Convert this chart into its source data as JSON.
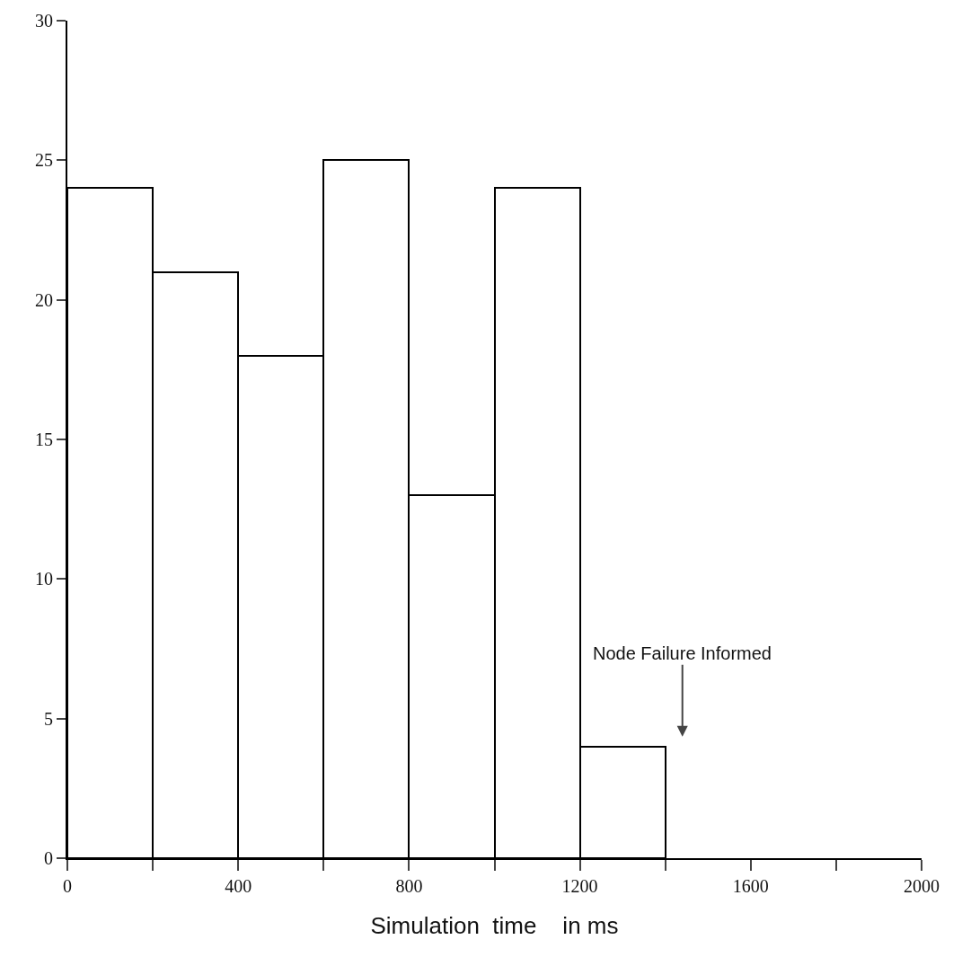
{
  "chart_data": {
    "type": "histogram",
    "bins": [
      0,
      200,
      400,
      600,
      800,
      1000,
      1200,
      1400
    ],
    "values": [
      24,
      21,
      18,
      25,
      13,
      24,
      4
    ],
    "color": "#000000",
    "xlabel": "Simulation  time    in ms",
    "xlim": [
      0,
      2000
    ],
    "xticks": [
      0,
      {
        "value": 200,
        "label": null
      },
      400,
      {
        "value": 600,
        "label": null
      },
      800,
      {
        "value": 1000,
        "label": null
      },
      1200,
      {
        "value": 1400,
        "label": null
      },
      1600,
      {
        "value": 1800,
        "label": null
      },
      2000
    ],
    "ylim": [
      0,
      30
    ],
    "yticks": [
      0,
      5,
      10,
      15,
      20,
      25,
      30
    ],
    "annotations": [
      "Node Failure Informed"
    ],
    "grid": false
  }
}
